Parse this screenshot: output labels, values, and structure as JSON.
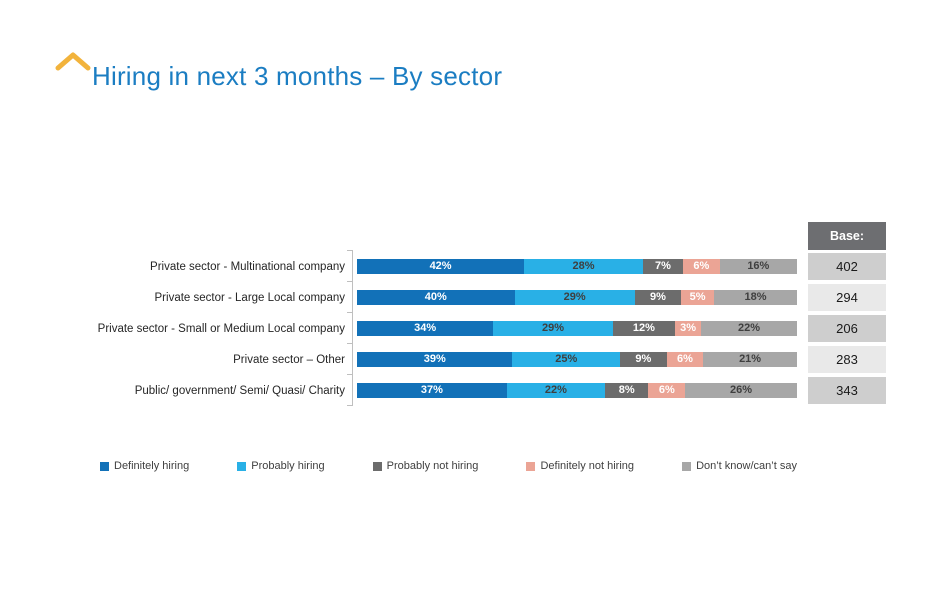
{
  "header": {
    "title": "Hiring in next 3 months – By sector",
    "accent_color": "#1b7dc2",
    "chevron_color": "#f2b33c"
  },
  "chart_data": {
    "type": "bar",
    "orientation": "horizontal",
    "stacked": true,
    "grid": false,
    "legend_position": "bottom",
    "value_suffix": "%",
    "axis_color": "#bfbfbf",
    "categories": [
      "Private sector - Multinational company",
      "Private sector -  Large Local company",
      "Private sector - Small or Medium Local company",
      "Private sector – Other",
      "Public/ government/ Semi/ Quasi/ Charity"
    ],
    "series": [
      {
        "name": "Definitely hiring",
        "color": "#1271b8",
        "label_color": "#ffffff",
        "values": [
          42,
          40,
          34,
          39,
          37
        ]
      },
      {
        "name": "Probably hiring",
        "color": "#29b0e6",
        "label_color": "#3f3f3f",
        "values": [
          28,
          29,
          29,
          25,
          22
        ]
      },
      {
        "name": "Probably not hiring",
        "color": "#6c6c6c",
        "label_color": "#ffffff",
        "values": [
          7,
          9,
          12,
          9,
          8
        ]
      },
      {
        "name": "Definitely not hiring",
        "color": "#eba495",
        "label_color": "#ffffff",
        "values": [
          6,
          5,
          3,
          6,
          6
        ]
      },
      {
        "name": "Don’t know/can’t say",
        "color": "#a7a7a7",
        "label_color": "#3f3f3f",
        "values": [
          16,
          18,
          22,
          21,
          26
        ]
      }
    ],
    "base": {
      "header": "Base:",
      "values": [
        402,
        294,
        206,
        283,
        343
      ]
    }
  }
}
